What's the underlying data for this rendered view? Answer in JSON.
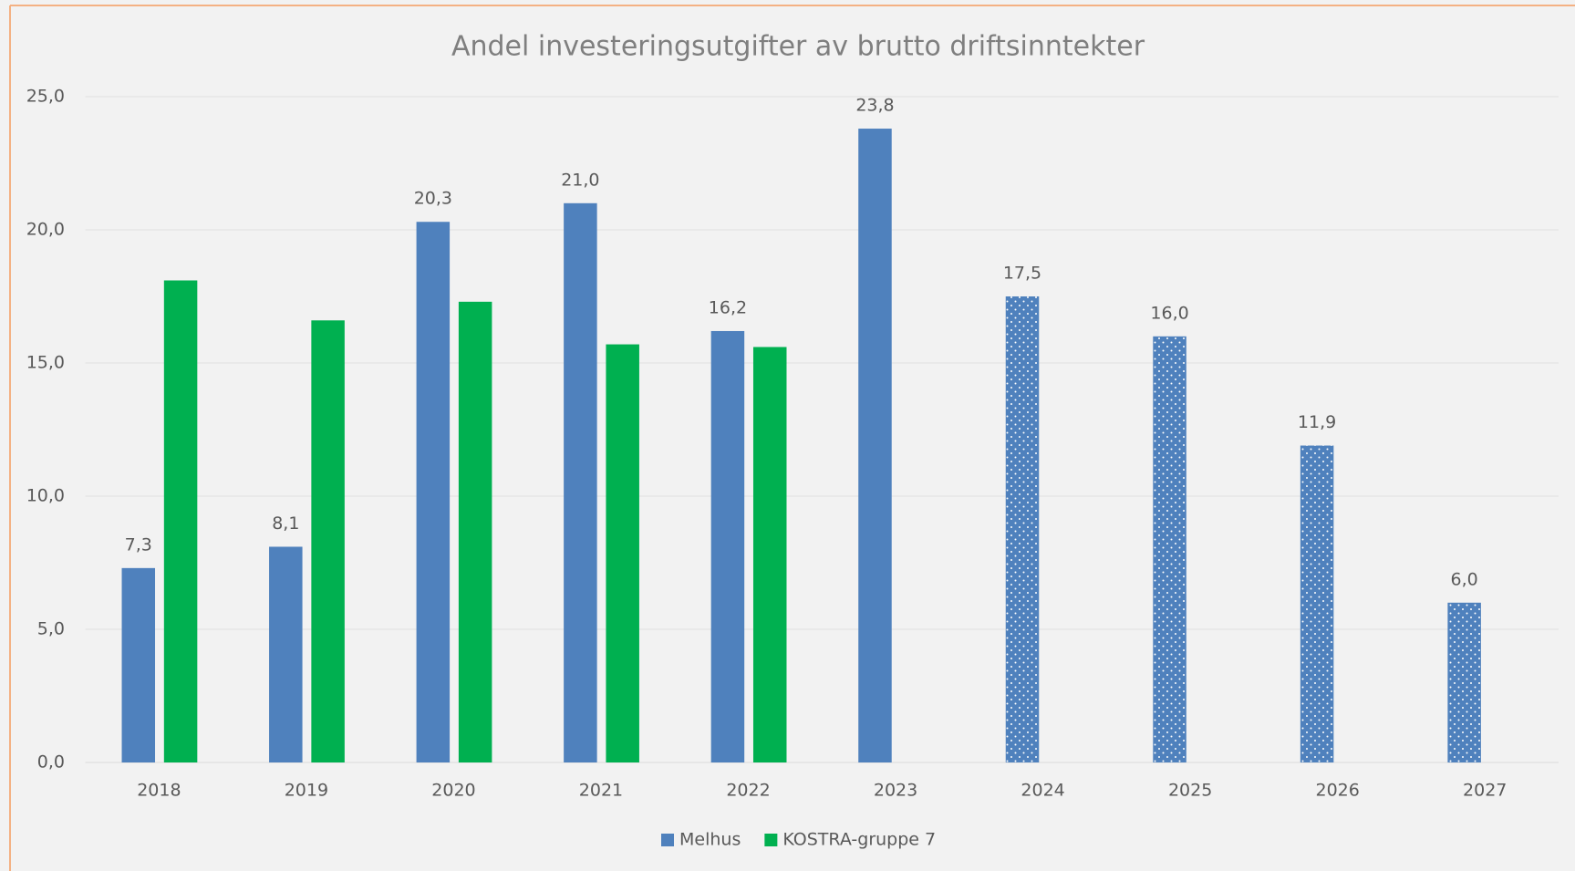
{
  "chart_data": {
    "type": "bar",
    "title": "Andel investeringsutgifter av brutto driftsinntekter",
    "categories": [
      "2018",
      "2019",
      "2020",
      "2021",
      "2022",
      "2023",
      "2024",
      "2025",
      "2026",
      "2027"
    ],
    "series": [
      {
        "name": "Melhus",
        "color": "#4f81bd",
        "values": [
          7.3,
          8.1,
          20.3,
          21.0,
          16.2,
          23.8,
          17.5,
          16.0,
          11.9,
          6.0
        ],
        "value_labels": [
          "7,3",
          "8,1",
          "20,3",
          "21,0",
          "16,2",
          "23,8",
          "17,5",
          "16,0",
          "11,9",
          "6,0"
        ],
        "styles": [
          "solid",
          "solid",
          "solid",
          "solid",
          "solid",
          "solid",
          "dotted",
          "dotted",
          "dotted",
          "dotted"
        ]
      },
      {
        "name": "KOSTRA-gruppe 7",
        "color": "#00b050",
        "values": [
          18.1,
          16.6,
          17.3,
          15.7,
          15.6,
          null,
          null,
          null,
          null,
          null
        ]
      }
    ],
    "ylim": [
      0,
      25
    ],
    "yticks": [
      {
        "value": 0,
        "label": "0,0"
      },
      {
        "value": 5,
        "label": "5,0"
      },
      {
        "value": 10,
        "label": "10,0"
      },
      {
        "value": 15,
        "label": "15,0"
      },
      {
        "value": 20,
        "label": "20,0"
      },
      {
        "value": 25,
        "label": "25,0"
      }
    ],
    "grid": true,
    "legend": "bottom"
  }
}
